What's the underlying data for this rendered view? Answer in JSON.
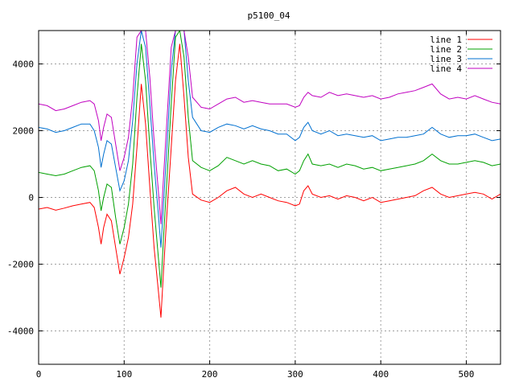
{
  "chart_data": {
    "type": "line",
    "title": "p5100_04",
    "xlabel": "",
    "ylabel": "",
    "xlim": [
      0,
      540
    ],
    "ylim": [
      -5000,
      5000
    ],
    "x_ticks": [
      0,
      100,
      200,
      300,
      400,
      500
    ],
    "y_ticks": [
      -4000,
      -2000,
      0,
      2000,
      4000
    ],
    "grid": true,
    "legend_position": "top-right",
    "series": [
      {
        "name": "line 1",
        "color": "#ff0000",
        "points": [
          [
            0,
            -350
          ],
          [
            10,
            -300
          ],
          [
            20,
            -380
          ],
          [
            30,
            -320
          ],
          [
            40,
            -250
          ],
          [
            50,
            -200
          ],
          [
            60,
            -150
          ],
          [
            65,
            -300
          ],
          [
            70,
            -900
          ],
          [
            73,
            -1400
          ],
          [
            76,
            -900
          ],
          [
            80,
            -500
          ],
          [
            85,
            -700
          ],
          [
            90,
            -1500
          ],
          [
            95,
            -2300
          ],
          [
            100,
            -1800
          ],
          [
            105,
            -1200
          ],
          [
            110,
            -200
          ],
          [
            115,
            1500
          ],
          [
            120,
            3400
          ],
          [
            125,
            2200
          ],
          [
            130,
            300
          ],
          [
            135,
            -1500
          ],
          [
            140,
            -2800
          ],
          [
            143,
            -3600
          ],
          [
            146,
            -2200
          ],
          [
            150,
            -500
          ],
          [
            155,
            1500
          ],
          [
            160,
            3500
          ],
          [
            165,
            4600
          ],
          [
            170,
            3000
          ],
          [
            175,
            1200
          ],
          [
            180,
            100
          ],
          [
            190,
            -80
          ],
          [
            200,
            -150
          ],
          [
            210,
            0
          ],
          [
            220,
            200
          ],
          [
            230,
            300
          ],
          [
            240,
            100
          ],
          [
            250,
            0
          ],
          [
            260,
            100
          ],
          [
            270,
            0
          ],
          [
            280,
            -100
          ],
          [
            290,
            -150
          ],
          [
            300,
            -250
          ],
          [
            305,
            -200
          ],
          [
            310,
            200
          ],
          [
            315,
            350
          ],
          [
            320,
            100
          ],
          [
            330,
            0
          ],
          [
            340,
            50
          ],
          [
            350,
            -50
          ],
          [
            360,
            50
          ],
          [
            370,
            0
          ],
          [
            380,
            -100
          ],
          [
            390,
            0
          ],
          [
            400,
            -150
          ],
          [
            410,
            -100
          ],
          [
            420,
            -50
          ],
          [
            430,
            0
          ],
          [
            440,
            50
          ],
          [
            450,
            200
          ],
          [
            460,
            300
          ],
          [
            470,
            100
          ],
          [
            480,
            0
          ],
          [
            490,
            50
          ],
          [
            500,
            100
          ],
          [
            510,
            150
          ],
          [
            520,
            100
          ],
          [
            530,
            -50
          ],
          [
            540,
            100
          ]
        ]
      },
      {
        "name": "line 2",
        "color": "#00a000",
        "points": [
          [
            0,
            750
          ],
          [
            10,
            700
          ],
          [
            20,
            650
          ],
          [
            30,
            700
          ],
          [
            40,
            800
          ],
          [
            50,
            900
          ],
          [
            60,
            950
          ],
          [
            65,
            800
          ],
          [
            70,
            200
          ],
          [
            73,
            -400
          ],
          [
            76,
            0
          ],
          [
            80,
            400
          ],
          [
            85,
            300
          ],
          [
            90,
            -600
          ],
          [
            95,
            -1400
          ],
          [
            100,
            -900
          ],
          [
            105,
            -200
          ],
          [
            110,
            1000
          ],
          [
            115,
            3000
          ],
          [
            120,
            4600
          ],
          [
            125,
            3500
          ],
          [
            130,
            1500
          ],
          [
            135,
            -300
          ],
          [
            140,
            -1800
          ],
          [
            143,
            -2700
          ],
          [
            146,
            -1200
          ],
          [
            150,
            500
          ],
          [
            155,
            2800
          ],
          [
            160,
            4800
          ],
          [
            165,
            5000
          ],
          [
            170,
            4200
          ],
          [
            175,
            2400
          ],
          [
            180,
            1100
          ],
          [
            190,
            900
          ],
          [
            200,
            800
          ],
          [
            210,
            950
          ],
          [
            220,
            1200
          ],
          [
            230,
            1100
          ],
          [
            240,
            1000
          ],
          [
            250,
            1100
          ],
          [
            260,
            1000
          ],
          [
            270,
            950
          ],
          [
            280,
            800
          ],
          [
            290,
            850
          ],
          [
            300,
            700
          ],
          [
            305,
            800
          ],
          [
            310,
            1100
          ],
          [
            315,
            1300
          ],
          [
            320,
            1000
          ],
          [
            330,
            950
          ],
          [
            340,
            1000
          ],
          [
            350,
            900
          ],
          [
            360,
            1000
          ],
          [
            370,
            950
          ],
          [
            380,
            850
          ],
          [
            390,
            900
          ],
          [
            400,
            800
          ],
          [
            410,
            850
          ],
          [
            420,
            900
          ],
          [
            430,
            950
          ],
          [
            440,
            1000
          ],
          [
            450,
            1100
          ],
          [
            460,
            1300
          ],
          [
            470,
            1100
          ],
          [
            480,
            1000
          ],
          [
            490,
            1000
          ],
          [
            500,
            1050
          ],
          [
            510,
            1100
          ],
          [
            520,
            1050
          ],
          [
            530,
            950
          ],
          [
            540,
            1000
          ]
        ]
      },
      {
        "name": "line 3",
        "color": "#0070d0",
        "points": [
          [
            0,
            2100
          ],
          [
            10,
            2050
          ],
          [
            20,
            1950
          ],
          [
            30,
            2000
          ],
          [
            40,
            2100
          ],
          [
            50,
            2200
          ],
          [
            60,
            2200
          ],
          [
            65,
            2000
          ],
          [
            70,
            1500
          ],
          [
            73,
            900
          ],
          [
            76,
            1300
          ],
          [
            80,
            1700
          ],
          [
            85,
            1600
          ],
          [
            90,
            900
          ],
          [
            95,
            200
          ],
          [
            100,
            500
          ],
          [
            105,
            1100
          ],
          [
            110,
            2300
          ],
          [
            115,
            4000
          ],
          [
            120,
            5000
          ],
          [
            125,
            4500
          ],
          [
            130,
            2800
          ],
          [
            135,
            1000
          ],
          [
            140,
            -500
          ],
          [
            143,
            -1500
          ],
          [
            146,
            -200
          ],
          [
            150,
            1500
          ],
          [
            155,
            3800
          ],
          [
            160,
            5000
          ],
          [
            165,
            5000
          ],
          [
            170,
            5000
          ],
          [
            175,
            3500
          ],
          [
            180,
            2400
          ],
          [
            190,
            2000
          ],
          [
            200,
            1950
          ],
          [
            210,
            2100
          ],
          [
            220,
            2200
          ],
          [
            230,
            2150
          ],
          [
            240,
            2050
          ],
          [
            250,
            2150
          ],
          [
            260,
            2050
          ],
          [
            270,
            2000
          ],
          [
            280,
            1900
          ],
          [
            290,
            1900
          ],
          [
            300,
            1700
          ],
          [
            305,
            1800
          ],
          [
            310,
            2100
          ],
          [
            315,
            2250
          ],
          [
            320,
            2000
          ],
          [
            330,
            1900
          ],
          [
            340,
            2000
          ],
          [
            350,
            1850
          ],
          [
            360,
            1900
          ],
          [
            370,
            1850
          ],
          [
            380,
            1800
          ],
          [
            390,
            1850
          ],
          [
            400,
            1700
          ],
          [
            410,
            1750
          ],
          [
            420,
            1800
          ],
          [
            430,
            1800
          ],
          [
            440,
            1850
          ],
          [
            450,
            1900
          ],
          [
            460,
            2100
          ],
          [
            470,
            1900
          ],
          [
            480,
            1800
          ],
          [
            490,
            1850
          ],
          [
            500,
            1850
          ],
          [
            510,
            1900
          ],
          [
            520,
            1800
          ],
          [
            530,
            1700
          ],
          [
            540,
            1750
          ]
        ]
      },
      {
        "name": "line 4",
        "color": "#c000c0",
        "points": [
          [
            0,
            2800
          ],
          [
            10,
            2750
          ],
          [
            20,
            2600
          ],
          [
            30,
            2650
          ],
          [
            40,
            2750
          ],
          [
            50,
            2850
          ],
          [
            60,
            2900
          ],
          [
            65,
            2800
          ],
          [
            70,
            2300
          ],
          [
            73,
            1700
          ],
          [
            76,
            2100
          ],
          [
            80,
            2500
          ],
          [
            85,
            2400
          ],
          [
            90,
            1600
          ],
          [
            95,
            800
          ],
          [
            100,
            1200
          ],
          [
            105,
            1800
          ],
          [
            110,
            3000
          ],
          [
            115,
            4800
          ],
          [
            120,
            5000
          ],
          [
            125,
            5000
          ],
          [
            130,
            3600
          ],
          [
            135,
            1700
          ],
          [
            140,
            200
          ],
          [
            143,
            -800
          ],
          [
            146,
            600
          ],
          [
            150,
            2300
          ],
          [
            155,
            4500
          ],
          [
            160,
            5000
          ],
          [
            165,
            5000
          ],
          [
            170,
            5000
          ],
          [
            175,
            4200
          ],
          [
            180,
            3000
          ],
          [
            190,
            2700
          ],
          [
            200,
            2650
          ],
          [
            210,
            2800
          ],
          [
            220,
            2950
          ],
          [
            230,
            3000
          ],
          [
            240,
            2850
          ],
          [
            250,
            2900
          ],
          [
            260,
            2850
          ],
          [
            270,
            2800
          ],
          [
            280,
            2800
          ],
          [
            290,
            2800
          ],
          [
            300,
            2700
          ],
          [
            305,
            2750
          ],
          [
            310,
            3000
          ],
          [
            315,
            3150
          ],
          [
            320,
            3050
          ],
          [
            330,
            3000
          ],
          [
            340,
            3150
          ],
          [
            350,
            3050
          ],
          [
            360,
            3100
          ],
          [
            370,
            3050
          ],
          [
            380,
            3000
          ],
          [
            390,
            3050
          ],
          [
            400,
            2950
          ],
          [
            410,
            3000
          ],
          [
            420,
            3100
          ],
          [
            430,
            3150
          ],
          [
            440,
            3200
          ],
          [
            450,
            3300
          ],
          [
            460,
            3400
          ],
          [
            470,
            3100
          ],
          [
            480,
            2950
          ],
          [
            490,
            3000
          ],
          [
            500,
            2950
          ],
          [
            510,
            3050
          ],
          [
            520,
            2950
          ],
          [
            530,
            2850
          ],
          [
            540,
            2800
          ]
        ]
      }
    ]
  }
}
